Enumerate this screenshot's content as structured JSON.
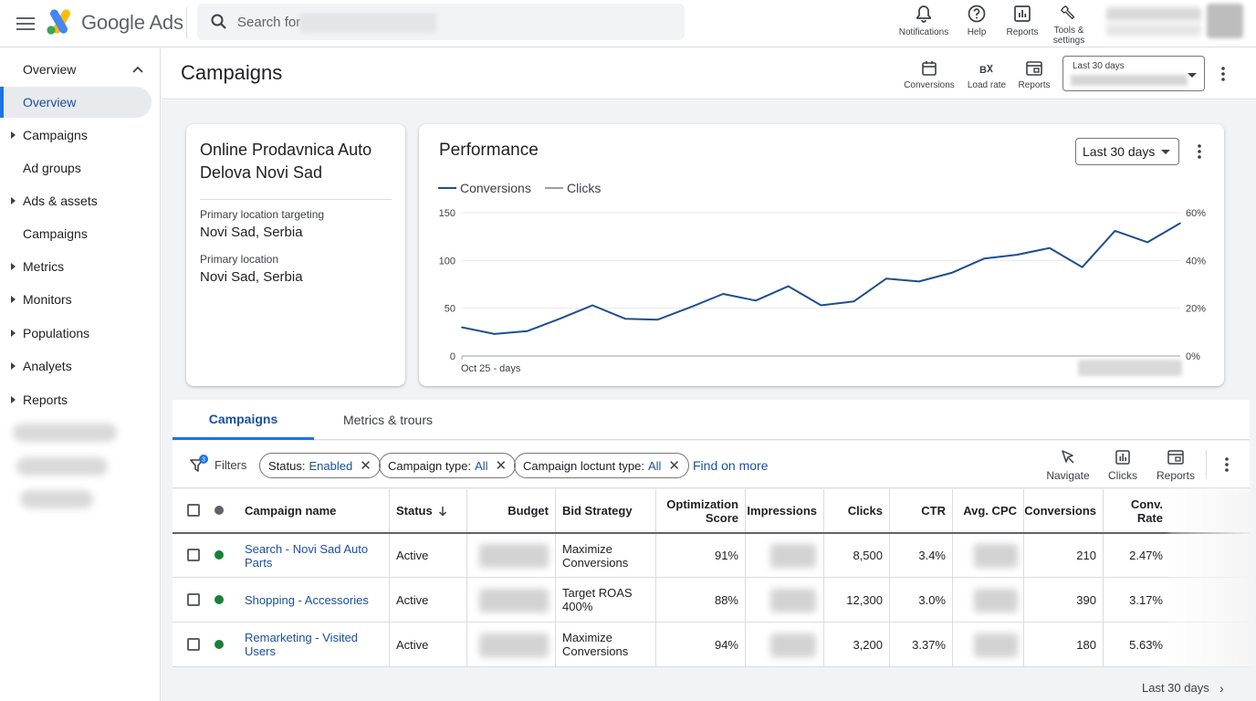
{
  "app": {
    "logo_text": "Google Ads",
    "search_placeholder": "Search for",
    "colors": {
      "accent": "#1a73e8",
      "link": "#1a4fa0",
      "active_dot": "#188038",
      "logo_blue": "#4285f4",
      "logo_yellow": "#fbbc04",
      "logo_green": "#34a853"
    }
  },
  "topbar": {
    "actions": [
      {
        "label": "Notifications",
        "icon": "bell-icon"
      },
      {
        "label": "Help",
        "icon": "help-icon"
      },
      {
        "label": "Reports",
        "icon": "reports-icon"
      },
      {
        "label_line1": "Tools &",
        "label_line2": "settings",
        "icon": "wrench-icon"
      }
    ]
  },
  "sidebar": {
    "items": [
      {
        "label": "Overview",
        "expandable": false,
        "expanded": true
      },
      {
        "label": "Overview",
        "active": true
      },
      {
        "label": "Campaigns",
        "expandable": true
      },
      {
        "label": "Ad groups",
        "expandable": false
      },
      {
        "label": "Ads & assets",
        "expandable": true
      },
      {
        "label": "Campaigns",
        "expandable": false
      },
      {
        "label": "Metrics",
        "expandable": true
      },
      {
        "label": "Monitors",
        "expandable": true
      },
      {
        "label": "Populations",
        "expandable": true
      },
      {
        "label": "Analyets",
        "expandable": true
      },
      {
        "label": "Reports",
        "expandable": true
      }
    ]
  },
  "header": {
    "title": "Campaigns",
    "actions": [
      {
        "label": "Conversions",
        "icon": "calendar-icon"
      },
      {
        "label": "Load rate",
        "icon": "load-rate-icon"
      },
      {
        "label": "Reports",
        "icon": "reports-icon"
      }
    ],
    "date_range_label": "Last 30 days"
  },
  "account": {
    "name": "Online Prodavnica Auto Delova Novi Sad",
    "primary_targeting_label": "Primary location targeting",
    "primary_targeting_value": "Novi Sad, Serbia",
    "primary_location_label": "Primary location",
    "primary_location_value": "Novi Sad, Serbia"
  },
  "performance": {
    "title": "Performance",
    "range": "Last 30 days",
    "legend": {
      "conversions": "Conversions",
      "clicks": "Clicks"
    },
    "x_label": "Oct 25 - days",
    "left_ticks": [
      "0",
      "50",
      "100",
      "150"
    ],
    "right_ticks": [
      "0%",
      "20%",
      "40%",
      "60%"
    ]
  },
  "chart_data": {
    "type": "line",
    "xlabel": "Oct 25 - days",
    "ylim": [
      0,
      150
    ],
    "y2lim": [
      0,
      60
    ],
    "grid": true,
    "legend_position": "top-left",
    "series": [
      {
        "name": "Conversions",
        "color": "#1f4e8c",
        "values": [
          30,
          23,
          26,
          39,
          53,
          39,
          38,
          51,
          65,
          58,
          73,
          53,
          57,
          81,
          78,
          87,
          102,
          106,
          113,
          93,
          131,
          119,
          139
        ]
      },
      {
        "name": "Clicks",
        "color": "#9aa0a6",
        "values": []
      }
    ]
  },
  "tabs": [
    {
      "label": "Campaigns",
      "active": true
    },
    {
      "label": "Metrics & trours",
      "active": false
    }
  ],
  "filters": {
    "label": "Filters",
    "badge": "3",
    "chips": [
      {
        "key": "Status:",
        "value": "Enabled"
      },
      {
        "key": "Campaign type:",
        "value": "All"
      },
      {
        "key": "Campaign loctunt type:",
        "value": "All"
      }
    ],
    "find_more": "Find on more",
    "actions": [
      {
        "label": "Navigate",
        "icon": "navigate-icon"
      },
      {
        "label": "Clicks",
        "icon": "clicks-icon"
      },
      {
        "label": "Reports",
        "icon": "reports-icon"
      }
    ]
  },
  "table": {
    "headers": {
      "name": "Campaign name",
      "status": "Status",
      "budget": "Budget",
      "bid": "Bid Strategy",
      "opt_line1": "Optimization",
      "opt_line2": "Score",
      "impressions": "Impressions",
      "clicks": "Clicks",
      "ctr": "CTR",
      "cpc": "Avg. CPC",
      "conversions": "Conversions",
      "rate_line1": "Conv.",
      "rate_line2": "Rate"
    },
    "rows": [
      {
        "name_line1": "Search - Novi Sad Auto",
        "name_line2": "Parts",
        "status": "Active",
        "bid_line1": "Maximize",
        "bid_line2": "Conversions",
        "opt": "91%",
        "clicks": "8,500",
        "ctr": "3.4%",
        "conversions": "210",
        "rate": "2.47%"
      },
      {
        "name_line1": "Shopping - Accessories",
        "name_line2": "",
        "status": "Active",
        "bid_line1": "Target ROAS",
        "bid_line2": "400%",
        "opt": "88%",
        "clicks": "12,300",
        "ctr": "3.0%",
        "conversions": "390",
        "rate": "3.17%"
      },
      {
        "name_line1": "Remarketing - Visited",
        "name_line2": "Users",
        "status": "Active",
        "bid_line1": "Maximize",
        "bid_line2": "Conversions",
        "opt": "94%",
        "clicks": "3,200",
        "ctr": "3.37%",
        "conversions": "180",
        "rate": "5.63%"
      }
    ]
  },
  "footer": {
    "range_link": "Last 30 days"
  }
}
